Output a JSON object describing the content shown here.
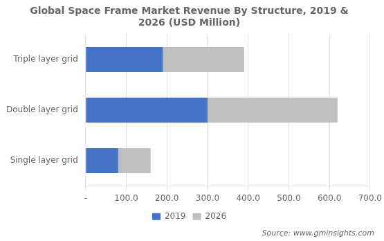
{
  "chart_data": {
    "type": "bar",
    "title": "Global Space Frame Market Revenue By Structure, 2019 &\n2026 (USD Million)",
    "orientation": "horizontal",
    "stacked": true,
    "categories": [
      "Single layer grid",
      "Double layer grid",
      "Triple layer grid"
    ],
    "series": [
      {
        "name": "2019",
        "color": "#4472C4",
        "values": [
          80,
          300,
          190
        ]
      },
      {
        "name": "2026",
        "color": "#BFBFBF",
        "values": [
          80,
          320,
          200
        ]
      }
    ],
    "xlim": [
      0,
      700
    ],
    "xticks": [
      {
        "value": 0,
        "label": "-"
      },
      {
        "value": 100,
        "label": "100.0"
      },
      {
        "value": 200,
        "label": "200.0"
      },
      {
        "value": 300,
        "label": "300.0"
      },
      {
        "value": 400,
        "label": "400.0"
      },
      {
        "value": 500,
        "label": "500.0"
      },
      {
        "value": 600,
        "label": "600.0"
      },
      {
        "value": 700,
        "label": "700.0"
      }
    ],
    "grid": true,
    "legend": "bottom",
    "annotation": "Source: www.gminsights.com"
  }
}
